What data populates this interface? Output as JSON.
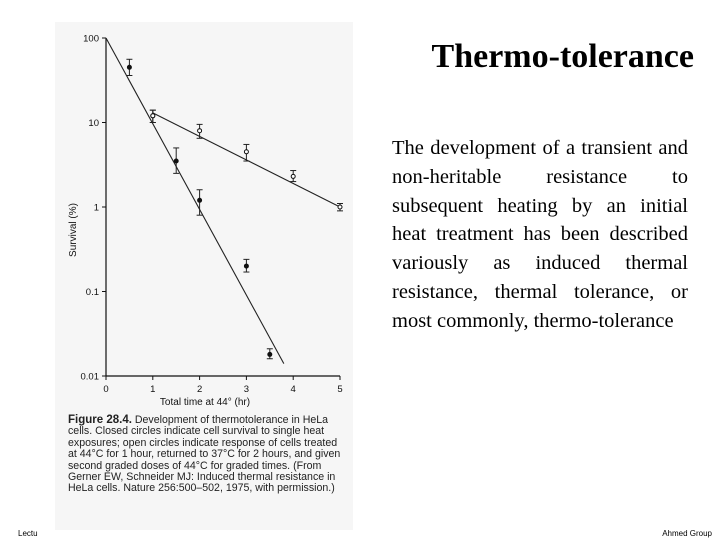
{
  "slide": {
    "title": "Thermo-tolerance",
    "body": "The development of a transient and non-heritable resistance to subsequent heating by an initial heat treatment has been described variously as induced thermal resistance, thermal tolerance, or most commonly, thermo-tolerance",
    "footer_left": "Lectu",
    "footer_right": "Ahmed Group"
  },
  "caption": {
    "figure_label": "Figure 28.4.",
    "text": "Development of thermotolerance in HeLa cells. Closed circles indicate cell survival to single heat exposures; open circles indicate response of cells treated at 44°C for 1 hour, returned to 37°C for 2 hours, and given second graded doses of 44°C for graded times. (From Gerner EW, Schneider MJ: Induced thermal resistance in HeLa cells. Nature 256:500–502, 1975, with permission.)"
  },
  "chart_data": {
    "type": "line",
    "xlabel": "Total time at 44° (hr)",
    "ylabel": "Survival (%)",
    "xlim": [
      0,
      5
    ],
    "ylim": [
      0.01,
      100
    ],
    "yscale": "log",
    "x_ticks": [
      "0",
      "1",
      "2",
      "3",
      "4",
      "5"
    ],
    "y_ticks": [
      "100",
      "10",
      "1",
      "0.1",
      "0.01"
    ],
    "grid": false,
    "series": [
      {
        "marker": "closed",
        "points": [
          {
            "x": 0.5,
            "y": 45,
            "err": [
              36,
              56
            ]
          },
          {
            "x": 1.0,
            "y": 12,
            "err": [
              10,
              14
            ]
          },
          {
            "x": 1.5,
            "y": 3.5,
            "err": [
              2.5,
              5
            ]
          },
          {
            "x": 2.0,
            "y": 1.2,
            "err": [
              0.8,
              1.6
            ]
          },
          {
            "x": 3.0,
            "y": 0.2,
            "err": [
              0.17,
              0.24
            ]
          },
          {
            "x": 3.5,
            "y": 0.018,
            "err": [
              0.016,
              0.021
            ]
          }
        ],
        "fit": [
          {
            "x": 0,
            "y": 100
          },
          {
            "x": 3.8,
            "y": 0.014
          }
        ]
      },
      {
        "marker": "open",
        "points": [
          {
            "x": 1.0,
            "y": 12,
            "err": [
              10,
              14
            ]
          },
          {
            "x": 2.0,
            "y": 8,
            "err": [
              6.5,
              9.5
            ]
          },
          {
            "x": 3.0,
            "y": 4.5,
            "err": [
              3.5,
              5.5
            ]
          },
          {
            "x": 4.0,
            "y": 2.3,
            "err": [
              2,
              2.7
            ]
          },
          {
            "x": 5.0,
            "y": 1,
            "err": [
              0.9,
              1.1
            ]
          }
        ],
        "fit": [
          {
            "x": 1.0,
            "y": 13
          },
          {
            "x": 5.0,
            "y": 1
          }
        ]
      }
    ]
  }
}
